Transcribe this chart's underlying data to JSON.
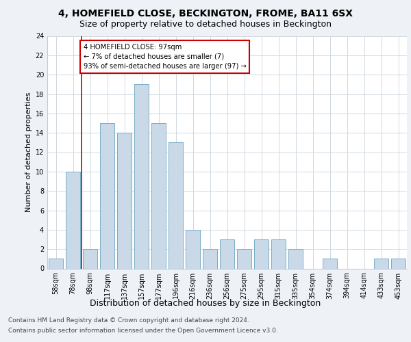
{
  "title1": "4, HOMEFIELD CLOSE, BECKINGTON, FROME, BA11 6SX",
  "title2": "Size of property relative to detached houses in Beckington",
  "xlabel": "Distribution of detached houses by size in Beckington",
  "ylabel": "Number of detached properties",
  "categories": [
    "58sqm",
    "78sqm",
    "98sqm",
    "117sqm",
    "137sqm",
    "157sqm",
    "177sqm",
    "196sqm",
    "216sqm",
    "236sqm",
    "256sqm",
    "275sqm",
    "295sqm",
    "315sqm",
    "335sqm",
    "354sqm",
    "374sqm",
    "394sqm",
    "414sqm",
    "433sqm",
    "453sqm"
  ],
  "values": [
    1,
    10,
    2,
    15,
    14,
    19,
    15,
    13,
    4,
    2,
    3,
    2,
    3,
    3,
    2,
    0,
    1,
    0,
    0,
    1,
    1
  ],
  "bar_color": "#c9d9e8",
  "bar_edge_color": "#7aaec8",
  "annotation_text": "4 HOMEFIELD CLOSE: 97sqm\n← 7% of detached houses are smaller (7)\n93% of semi-detached houses are larger (97) →",
  "annotation_box_color": "#ffffff",
  "annotation_box_edge_color": "#cc0000",
  "vline_color": "#cc0000",
  "grid_color": "#d0d8e0",
  "footer1": "Contains HM Land Registry data © Crown copyright and database right 2024.",
  "footer2": "Contains public sector information licensed under the Open Government Licence v3.0.",
  "ylim": [
    0,
    24
  ],
  "yticks": [
    0,
    2,
    4,
    6,
    8,
    10,
    12,
    14,
    16,
    18,
    20,
    22,
    24
  ],
  "background_color": "#eef2f7",
  "plot_background": "#ffffff",
  "title1_fontsize": 10,
  "title2_fontsize": 9,
  "ylabel_fontsize": 8,
  "xlabel_fontsize": 9,
  "tick_fontsize": 7,
  "footer_fontsize": 6.5
}
